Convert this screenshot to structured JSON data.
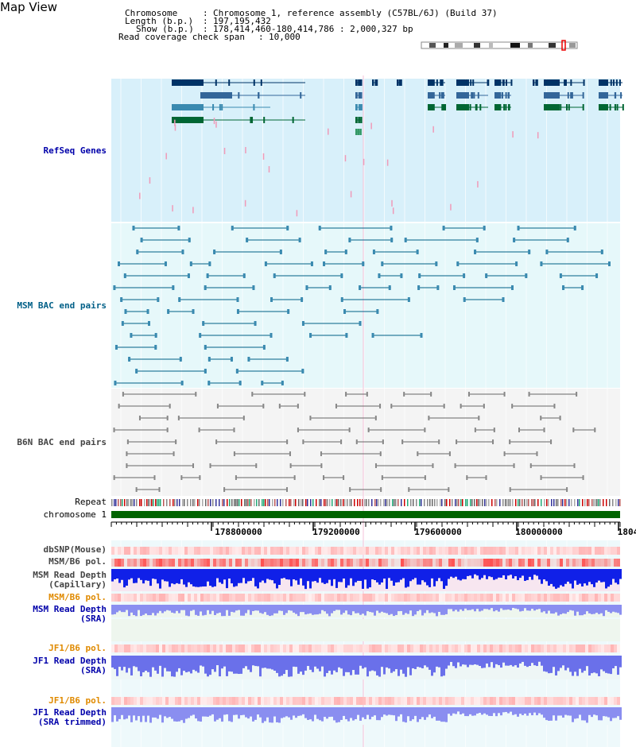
{
  "page_title": "Map View",
  "info": {
    "chromosome_label": "Chromosome",
    "chromosome_value": "Chromosome 1, reference assembly (C57BL/6J) (Build 37)",
    "length_label": "Length (b.p.)",
    "length_value": "197,195,432",
    "show_label": "Show (b.p.)",
    "show_value": "178,414,460-180,414,786 : 2,000,327 bp",
    "coverage_label": "Read coverage check span",
    "coverage_value": "10,000"
  },
  "tracks": {
    "refseq": "RefSeq Genes",
    "msm_bac": "MSM BAC end pairs",
    "b6n_bac": "B6N BAC end pairs",
    "repeat": "Repeat",
    "chromosome": "chromosome 1"
  },
  "axis": {
    "ticks": [
      "178800000",
      "179200000",
      "179600000",
      "180000000",
      "1804"
    ]
  },
  "lower_tracks": {
    "dbsnp": "dbSNP(Mouse)",
    "msm_pol": "MSM/B6 pol.",
    "msm_depth_cap_1": "MSM Read Depth",
    "msm_depth_cap_2": "(Capillary)",
    "msm_pol_2": "MSM/B6 pol.",
    "msm_depth_sra_1": "MSM Read Depth",
    "msm_depth_sra_2": "(SRA)",
    "jf1_pol": "JF1/B6 pol.",
    "jf1_depth_1": "JF1 Read Depth",
    "jf1_depth_2": "(SRA)",
    "jf1_pol_2": "JF1/B6 pol.",
    "jf1_trim_1": "JF1 Read Depth",
    "jf1_trim_2": "(SRA trimmed)"
  },
  "colors": {
    "refseq_bg": "#d8f0fa",
    "msm_bg": "#e6f8fa",
    "b6n_bg": "#f4f4f4",
    "chromosome_bar": "#006400",
    "label_blue": "#0000aa",
    "label_teal": "#005f87",
    "label_orange": "#e08a00",
    "label_gray": "#444444"
  }
}
